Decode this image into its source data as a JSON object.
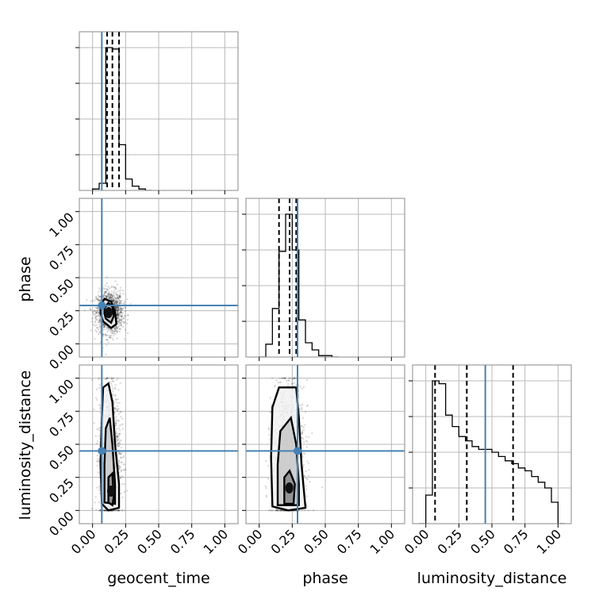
{
  "chart_data": {
    "type": "scatter",
    "parameters": [
      "geocent_time",
      "phase",
      "luminosity_distance"
    ],
    "axis_labels": {
      "geocent_time": "geocent_time",
      "phase": "phase",
      "luminosity_distance": "luminosity_distance"
    },
    "tick_values": [
      0.0,
      0.25,
      0.5,
      0.75,
      1.0
    ],
    "tick_labels": [
      "0.00",
      "0.25",
      "0.50",
      "0.75",
      "1.00"
    ],
    "limits": {
      "geocent_time": [
        -0.1,
        1.1
      ],
      "phase": [
        -0.1,
        1.1
      ],
      "luminosity_distance": [
        -0.1,
        1.1
      ]
    },
    "truths": {
      "geocent_time": 0.07,
      "phase": 0.29,
      "luminosity_distance": 0.45
    },
    "quantiles": {
      "geocent_time": [
        0.11,
        0.15,
        0.2
      ],
      "phase": [
        0.15,
        0.23,
        0.28
      ],
      "luminosity_distance": [
        0.07,
        0.31,
        0.66
      ]
    },
    "histograms": {
      "geocent_time": {
        "edges": [
          0.0,
          0.05,
          0.1,
          0.15,
          0.2,
          0.25,
          0.3,
          0.35,
          0.4,
          0.45
        ],
        "heights": [
          0.01,
          0.05,
          1.0,
          0.99,
          0.32,
          0.08,
          0.03,
          0.01,
          0.0
        ]
      },
      "phase": {
        "edges": [
          0.0,
          0.05,
          0.1,
          0.15,
          0.2,
          0.25,
          0.3,
          0.35,
          0.4,
          0.45,
          0.5,
          0.55,
          0.6
        ],
        "heights": [
          0.0,
          0.09,
          0.34,
          0.74,
          1.0,
          0.75,
          0.26,
          0.1,
          0.05,
          0.01,
          0.01,
          0.0
        ]
      },
      "luminosity_distance": {
        "edges": [
          -0.05,
          0.0,
          0.05,
          0.1,
          0.15,
          0.2,
          0.25,
          0.3,
          0.35,
          0.4,
          0.45,
          0.5,
          0.55,
          0.6,
          0.65,
          0.7,
          0.75,
          0.8,
          0.85,
          0.9,
          0.95,
          1.0,
          1.05
        ],
        "heights": [
          0.0,
          0.2,
          1.0,
          0.98,
          0.76,
          0.68,
          0.61,
          0.58,
          0.54,
          0.52,
          0.52,
          0.5,
          0.47,
          0.44,
          0.42,
          0.39,
          0.37,
          0.33,
          0.29,
          0.25,
          0.15,
          0.0
        ]
      }
    },
    "scatter_clouds": {
      "phase_vs_geocent_time": {
        "center": [
          0.13,
          0.24
        ],
        "spread": [
          0.05,
          0.08
        ]
      },
      "luminosity_distance_vs_geocent_time": {
        "center": [
          0.13,
          0.42
        ],
        "spread": [
          0.04,
          0.27
        ]
      },
      "luminosity_distance_vs_phase": {
        "center": [
          0.22,
          0.42
        ],
        "spread": [
          0.06,
          0.27
        ]
      }
    },
    "contours": {
      "phase_vs_geocent_time": [
        [
          [
            0.06,
            0.29
          ],
          [
            0.09,
            0.34
          ],
          [
            0.14,
            0.32
          ],
          [
            0.17,
            0.24
          ],
          [
            0.18,
            0.15
          ],
          [
            0.14,
            0.12
          ],
          [
            0.08,
            0.17
          ],
          [
            0.06,
            0.23
          ]
        ],
        [
          [
            0.09,
            0.27
          ],
          [
            0.12,
            0.31
          ],
          [
            0.15,
            0.28
          ],
          [
            0.16,
            0.21
          ],
          [
            0.14,
            0.16
          ],
          [
            0.1,
            0.19
          ],
          [
            0.09,
            0.23
          ]
        ]
      ],
      "luminosity_distance_vs_geocent_time": [
        [
          [
            0.07,
            0.05
          ],
          [
            0.06,
            0.35
          ],
          [
            0.07,
            0.7
          ],
          [
            0.08,
            0.93
          ],
          [
            0.12,
            0.96
          ],
          [
            0.15,
            0.82
          ],
          [
            0.17,
            0.5
          ],
          [
            0.2,
            0.2
          ],
          [
            0.2,
            0.02
          ],
          [
            0.12,
            0.0
          ]
        ],
        [
          [
            0.09,
            0.06
          ],
          [
            0.09,
            0.35
          ],
          [
            0.1,
            0.62
          ],
          [
            0.13,
            0.7
          ],
          [
            0.15,
            0.5
          ],
          [
            0.17,
            0.2
          ],
          [
            0.17,
            0.05
          ]
        ],
        [
          [
            0.12,
            0.06
          ],
          [
            0.12,
            0.25
          ],
          [
            0.15,
            0.28
          ],
          [
            0.16,
            0.1
          ],
          [
            0.15,
            0.04
          ]
        ]
      ],
      "luminosity_distance_vs_phase": [
        [
          [
            0.1,
            0.03
          ],
          [
            0.09,
            0.4
          ],
          [
            0.1,
            0.78
          ],
          [
            0.15,
            0.93
          ],
          [
            0.28,
            0.93
          ],
          [
            0.3,
            0.7
          ],
          [
            0.32,
            0.35
          ],
          [
            0.35,
            0.02
          ],
          [
            0.22,
            0.0
          ]
        ],
        [
          [
            0.14,
            0.04
          ],
          [
            0.14,
            0.35
          ],
          [
            0.16,
            0.6
          ],
          [
            0.24,
            0.7
          ],
          [
            0.28,
            0.5
          ],
          [
            0.3,
            0.2
          ],
          [
            0.3,
            0.04
          ]
        ],
        [
          [
            0.19,
            0.05
          ],
          [
            0.19,
            0.25
          ],
          [
            0.23,
            0.3
          ],
          [
            0.27,
            0.2
          ],
          [
            0.26,
            0.05
          ]
        ]
      ]
    },
    "grid": true
  }
}
